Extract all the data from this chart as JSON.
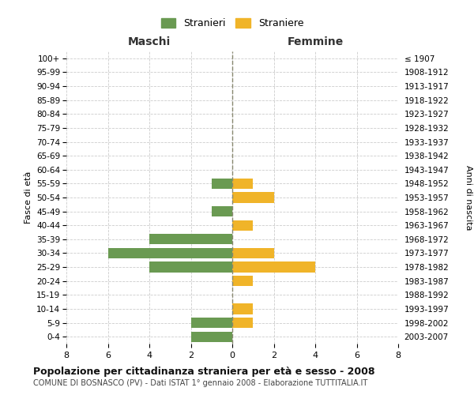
{
  "age_groups": [
    "100+",
    "95-99",
    "90-94",
    "85-89",
    "80-84",
    "75-79",
    "70-74",
    "65-69",
    "60-64",
    "55-59",
    "50-54",
    "45-49",
    "40-44",
    "35-39",
    "30-34",
    "25-29",
    "20-24",
    "15-19",
    "10-14",
    "5-9",
    "0-4"
  ],
  "birth_years": [
    "≤ 1907",
    "1908-1912",
    "1913-1917",
    "1918-1922",
    "1923-1927",
    "1928-1932",
    "1933-1937",
    "1938-1942",
    "1943-1947",
    "1948-1952",
    "1953-1957",
    "1958-1962",
    "1963-1967",
    "1968-1972",
    "1973-1977",
    "1978-1982",
    "1983-1987",
    "1988-1992",
    "1993-1997",
    "1998-2002",
    "2003-2007"
  ],
  "males": [
    0,
    0,
    0,
    0,
    0,
    0,
    0,
    0,
    0,
    1,
    0,
    1,
    0,
    4,
    6,
    4,
    0,
    0,
    0,
    2,
    2
  ],
  "females": [
    0,
    0,
    0,
    0,
    0,
    0,
    0,
    0,
    0,
    1,
    2,
    0,
    1,
    0,
    2,
    4,
    1,
    0,
    1,
    1,
    0
  ],
  "male_color": "#6a9a52",
  "female_color": "#f0b429",
  "male_label": "Stranieri",
  "female_label": "Straniere",
  "xlim": 8,
  "title": "Popolazione per cittadinanza straniera per età e sesso - 2008",
  "subtitle": "COMUNE DI BOSNASCO (PV) - Dati ISTAT 1° gennaio 2008 - Elaborazione TUTTITALIA.IT",
  "ylabel_left": "Fasce di età",
  "ylabel_right": "Anni di nascita",
  "header_left": "Maschi",
  "header_right": "Femmine",
  "background_color": "#ffffff",
  "grid_color": "#cccccc"
}
